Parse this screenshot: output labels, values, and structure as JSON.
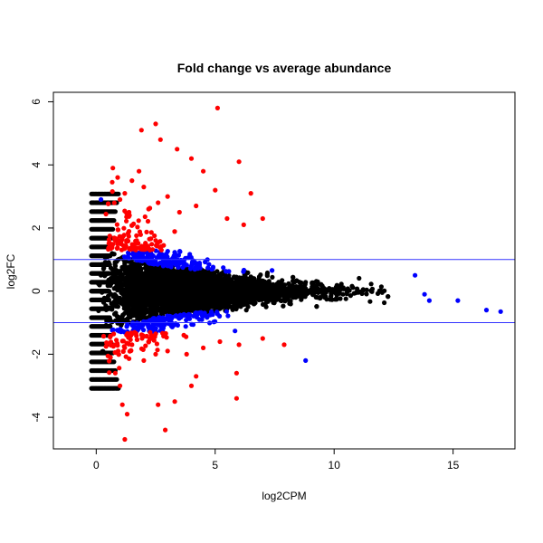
{
  "chart_data": {
    "type": "scatter",
    "title": "Fold change vs average abundance",
    "xlabel": "log2CPM",
    "ylabel": "log2FC",
    "xlim": [
      -1.8,
      17.6
    ],
    "ylim": [
      -5.0,
      6.3
    ],
    "x_ticks": [
      0,
      5,
      10,
      15
    ],
    "y_ticks": [
      -4,
      -2,
      0,
      2,
      4,
      6
    ],
    "hlines": [
      1,
      -1
    ],
    "hline_color": "#3333ff",
    "grid": false,
    "legend": "none",
    "colors": {
      "non_significant": "#000000",
      "significant_small_fc": "#0000ff",
      "significant_large_fc": "#ff0000"
    },
    "series_points": {
      "red": [
        [
          0.7,
          3.9
        ],
        [
          0.9,
          3.6
        ],
        [
          1.2,
          3.1
        ],
        [
          1.5,
          3.5
        ],
        [
          1.8,
          3.8
        ],
        [
          2.0,
          3.3
        ],
        [
          1.9,
          5.1
        ],
        [
          2.5,
          5.3
        ],
        [
          2.7,
          4.8
        ],
        [
          3.4,
          4.5
        ],
        [
          4.0,
          4.2
        ],
        [
          4.5,
          3.8
        ],
        [
          5.1,
          5.8
        ],
        [
          5.0,
          3.2
        ],
        [
          6.0,
          4.1
        ],
        [
          6.5,
          3.1
        ],
        [
          3.0,
          3.0
        ],
        [
          2.2,
          2.6
        ],
        [
          2.6,
          2.8
        ],
        [
          3.5,
          2.5
        ],
        [
          4.2,
          2.7
        ],
        [
          5.5,
          2.3
        ],
        [
          6.2,
          2.1
        ],
        [
          7.0,
          2.3
        ],
        [
          1.0,
          2.9
        ],
        [
          1.4,
          2.4
        ],
        [
          0.6,
          -2.1
        ],
        [
          0.8,
          -2.6
        ],
        [
          1.0,
          -3.0
        ],
        [
          1.1,
          -3.6
        ],
        [
          1.3,
          -3.9
        ],
        [
          1.2,
          -4.7
        ],
        [
          2.6,
          -3.6
        ],
        [
          2.9,
          -4.4
        ],
        [
          3.3,
          -3.5
        ],
        [
          4.0,
          -3.0
        ],
        [
          4.2,
          -2.7
        ],
        [
          5.9,
          -2.6
        ],
        [
          5.9,
          -3.4
        ],
        [
          2.0,
          -2.2
        ],
        [
          2.5,
          -2.0
        ],
        [
          3.0,
          -1.9
        ],
        [
          3.8,
          -2.0
        ],
        [
          4.5,
          -1.8
        ],
        [
          5.2,
          -1.6
        ],
        [
          6.0,
          -1.7
        ],
        [
          7.0,
          -1.5
        ],
        [
          7.9,
          -1.7
        ],
        [
          1.5,
          -1.7
        ],
        [
          2.2,
          -1.6
        ]
      ],
      "blue": [
        [
          0.2,
          2.9
        ],
        [
          13.4,
          0.5
        ],
        [
          14.0,
          -0.3
        ],
        [
          15.2,
          -0.3
        ],
        [
          16.4,
          -0.6
        ],
        [
          17.0,
          -0.65
        ],
        [
          8.8,
          -2.2
        ],
        [
          13.8,
          -0.1
        ]
      ]
    }
  }
}
